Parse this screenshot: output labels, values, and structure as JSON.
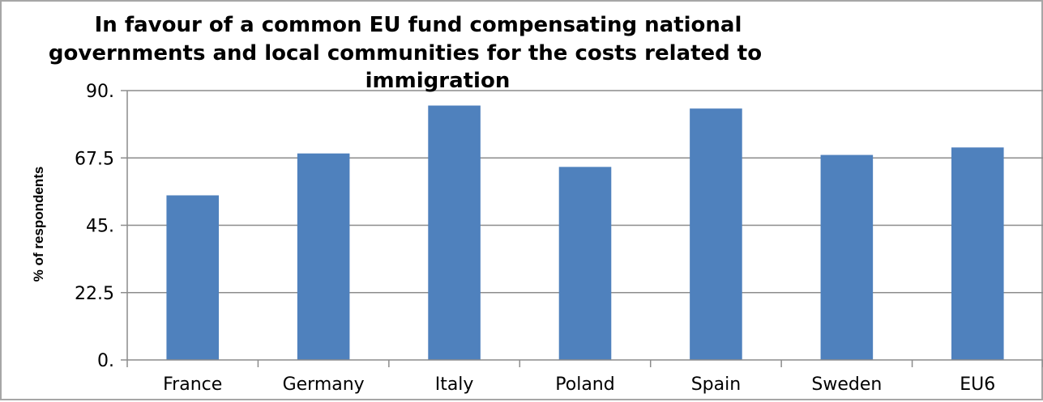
{
  "chart_data": {
    "type": "bar",
    "title_lines": [
      "In favour of a common EU fund compensating national",
      "governments and local communities for the costs related to",
      "immigration"
    ],
    "xlabel": "",
    "ylabel": "% of respondents",
    "categories": [
      "France",
      "Germany",
      "Italy",
      "Poland",
      "Spain",
      "Sweden",
      "EU6"
    ],
    "series": [
      {
        "values": [
          55,
          69,
          85,
          64.5,
          84,
          68.5,
          71
        ],
        "color": "#4f81bd"
      }
    ],
    "ylim": [
      0,
      90
    ],
    "yticks": [
      "0.",
      "22.5",
      "45.",
      "67.5",
      "90."
    ],
    "grid": true,
    "legend": "none",
    "colors": {
      "bar": "#4f81bd",
      "gridline": "#8c8c8c",
      "axis": "#8c8c8c",
      "frame": "#a6a6a6"
    }
  }
}
